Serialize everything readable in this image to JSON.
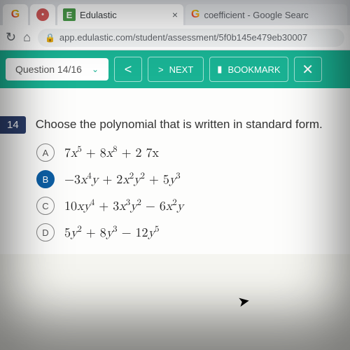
{
  "browser": {
    "tab1_letter": "G",
    "tab1_avatar": "•",
    "tab2_icon": "E",
    "tab2_title": "Edulastic",
    "tab3_icon": "G",
    "tab3_title": "coefficient - Google Searc",
    "close_glyph": "×"
  },
  "urlbar": {
    "reload": "↻",
    "home": "⌂",
    "lock": "🔒",
    "url": "app.edulastic.com/student/assessment/5f0b145e479eb30007"
  },
  "toolbar": {
    "question_label": "Question 14/16",
    "chevron": "⌄",
    "prev": "<",
    "next_arrow": ">",
    "next_label": "NEXT",
    "bookmark_icon": "▮",
    "bookmark_label": "BOOKMARK",
    "close": "✕"
  },
  "question": {
    "number": "14",
    "prompt": "Choose the polynomial that is written in standard form.",
    "choices": [
      {
        "letter": "A",
        "selected": false,
        "html": "7<i>x</i><sup>5</sup> + 8<i>x</i><sup>8</sup> + 2 7x"
      },
      {
        "letter": "B",
        "selected": true,
        "html": "−3<i>x</i><sup>4</sup><i>y</i> + 2<i>x</i><sup>2</sup><i>y</i><sup>2</sup> + 5<i>y</i><sup>3</sup>"
      },
      {
        "letter": "C",
        "selected": false,
        "html": "10<i>x</i><i>y</i><sup>4</sup> + 3<i>x</i><sup>3</sup><i>y</i><sup>2</sup> − 6<i>x</i><sup>2</sup><i>y</i>"
      },
      {
        "letter": "D",
        "selected": false,
        "html": "5<i>y</i><sup>2</sup> + 8<i>y</i><sup>3</sup> − 12<i>y</i><sup>5</sup>"
      }
    ]
  },
  "colors": {
    "toolbar_bg": "#1ab394",
    "qnum_bg": "#2c3e6b",
    "selected_bg": "#0e5fa4"
  }
}
